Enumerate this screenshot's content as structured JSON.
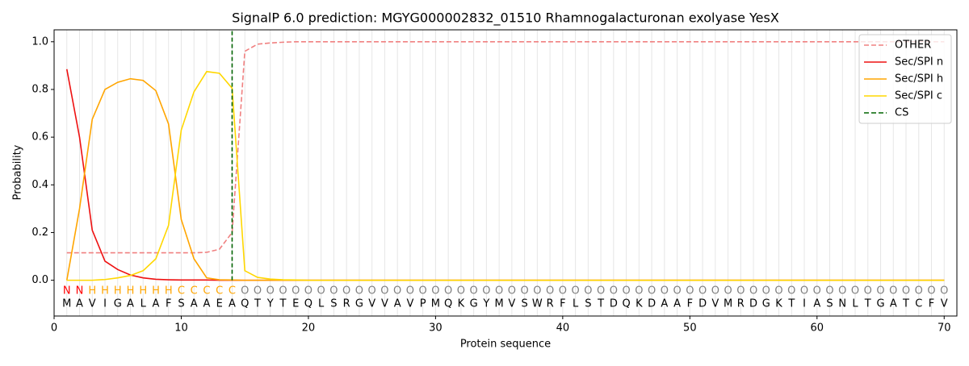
{
  "chart_data": {
    "type": "line",
    "title": "SignalP 6.0 prediction: MGYG000002832_01510 Rhamnogalacturonan exolyase YesX",
    "x_label": "Protein sequence",
    "y_label": "Probability",
    "x": [
      1,
      2,
      3,
      4,
      5,
      6,
      7,
      8,
      9,
      10,
      11,
      12,
      13,
      14,
      15,
      16,
      17,
      18,
      19,
      20,
      21,
      22,
      23,
      24,
      25,
      26,
      27,
      28,
      29,
      30,
      31,
      32,
      33,
      34,
      35,
      36,
      37,
      38,
      39,
      40,
      41,
      42,
      43,
      44,
      45,
      46,
      47,
      48,
      49,
      50,
      51,
      52,
      53,
      54,
      55,
      56,
      57,
      58,
      59,
      60,
      61,
      62,
      63,
      64,
      65,
      66,
      67,
      68,
      69,
      70
    ],
    "residues": [
      "M",
      "A",
      "V",
      "I",
      "G",
      "A",
      "L",
      "A",
      "F",
      "S",
      "A",
      "A",
      "E",
      "A",
      "Q",
      "T",
      "Y",
      "T",
      "E",
      "Q",
      "L",
      "S",
      "R",
      "G",
      "V",
      "V",
      "A",
      "V",
      "P",
      "M",
      "Q",
      "K",
      "G",
      "Y",
      "M",
      "V",
      "S",
      "W",
      "R",
      "F",
      "L",
      "S",
      "T",
      "D",
      "Q",
      "K",
      "D",
      "A",
      "A",
      "F",
      "D",
      "V",
      "M",
      "R",
      "D",
      "G",
      "K",
      "T",
      "I",
      "A",
      "S",
      "N",
      "L",
      "T",
      "G",
      "A",
      "T",
      "C",
      "F",
      "V"
    ],
    "states": [
      "N",
      "N",
      "H",
      "H",
      "H",
      "H",
      "H",
      "H",
      "H",
      "C",
      "C",
      "C",
      "C",
      "C",
      "O",
      "O",
      "O",
      "O",
      "O",
      "O",
      "O",
      "O",
      "O",
      "O",
      "O",
      "O",
      "O",
      "O",
      "O",
      "O",
      "O",
      "O",
      "O",
      "O",
      "O",
      "O",
      "O",
      "O",
      "O",
      "O",
      "O",
      "O",
      "O",
      "O",
      "O",
      "O",
      "O",
      "O",
      "O",
      "O",
      "O",
      "O",
      "O",
      "O",
      "O",
      "O",
      "O",
      "O",
      "O",
      "O",
      "O",
      "O",
      "O",
      "O",
      "O",
      "O",
      "O",
      "O",
      "O",
      "O"
    ],
    "state_colors": {
      "N": "#ff0000",
      "H": "#ffa500",
      "C": "#ffa500",
      "O": "#808080"
    },
    "series": [
      {
        "name": "OTHER",
        "color": "#f08080",
        "linestyle": "dashed",
        "values": [
          0.115,
          0.115,
          0.115,
          0.115,
          0.115,
          0.115,
          0.115,
          0.115,
          0.115,
          0.115,
          0.115,
          0.117,
          0.13,
          0.2,
          0.96,
          0.99,
          0.995,
          0.998,
          1,
          1,
          1,
          1,
          1,
          1,
          1,
          1,
          1,
          1,
          1,
          1,
          1,
          1,
          1,
          1,
          1,
          1,
          1,
          1,
          1,
          1,
          1,
          1,
          1,
          1,
          1,
          1,
          1,
          1,
          1,
          1,
          1,
          1,
          1,
          1,
          1,
          1,
          1,
          1,
          1,
          1,
          1,
          1,
          1,
          1,
          1,
          1,
          1,
          1,
          1,
          1
        ]
      },
      {
        "name": "Sec/SPI n",
        "color": "#ee1111",
        "linestyle": "solid",
        "values": [
          0.885,
          0.6,
          0.21,
          0.08,
          0.045,
          0.022,
          0.01,
          0.004,
          0.002,
          0.001,
          0.001,
          0.001,
          0,
          0,
          0,
          0,
          0,
          0,
          0,
          0,
          0,
          0,
          0,
          0,
          0,
          0,
          0,
          0,
          0,
          0,
          0,
          0,
          0,
          0,
          0,
          0,
          0,
          0,
          0,
          0,
          0,
          0,
          0,
          0,
          0,
          0,
          0,
          0,
          0,
          0,
          0,
          0,
          0,
          0,
          0,
          0,
          0,
          0,
          0,
          0,
          0,
          0,
          0,
          0,
          0,
          0,
          0,
          0,
          0,
          0
        ]
      },
      {
        "name": "Sec/SPI h",
        "color": "#ffa500",
        "linestyle": "solid",
        "values": [
          0,
          0.3,
          0.675,
          0.8,
          0.83,
          0.845,
          0.838,
          0.795,
          0.655,
          0.255,
          0.09,
          0.01,
          0.002,
          0.001,
          0,
          0,
          0,
          0,
          0,
          0,
          0,
          0,
          0,
          0,
          0,
          0,
          0,
          0,
          0,
          0,
          0,
          0,
          0,
          0,
          0,
          0,
          0,
          0,
          0,
          0,
          0,
          0,
          0,
          0,
          0,
          0,
          0,
          0,
          0,
          0,
          0,
          0,
          0,
          0,
          0,
          0,
          0,
          0,
          0,
          0,
          0,
          0,
          0,
          0,
          0,
          0,
          0,
          0,
          0,
          0
        ]
      },
      {
        "name": "Sec/SPI c",
        "color": "#ffd700",
        "linestyle": "solid",
        "values": [
          0,
          0,
          0,
          0.003,
          0.01,
          0.02,
          0.04,
          0.09,
          0.23,
          0.63,
          0.79,
          0.875,
          0.868,
          0.805,
          0.04,
          0.012,
          0.005,
          0.002,
          0.001,
          0,
          0,
          0,
          0,
          0,
          0,
          0,
          0,
          0,
          0,
          0,
          0,
          0,
          0,
          0,
          0,
          0,
          0,
          0,
          0,
          0,
          0,
          0,
          0,
          0,
          0,
          0,
          0,
          0,
          0,
          0,
          0,
          0,
          0,
          0,
          0,
          0,
          0,
          0,
          0,
          0,
          0,
          0,
          0,
          0,
          0,
          0,
          0,
          0,
          0,
          0
        ]
      }
    ],
    "cs": {
      "name": "CS",
      "x": 14,
      "color": "#006400"
    },
    "xlim": [
      0,
      71
    ],
    "ylim": [
      -0.15,
      1.05
    ],
    "xticks": [
      0,
      10,
      20,
      30,
      40,
      50,
      60,
      70
    ],
    "yticks": [
      {
        "value": 0,
        "label": "0.0"
      },
      {
        "value": 0.2,
        "label": "0.2"
      },
      {
        "value": 0.4,
        "label": "0.4"
      },
      {
        "value": 0.6,
        "label": "0.6"
      },
      {
        "value": 0.8,
        "label": "0.8"
      },
      {
        "value": 1,
        "label": "1.0"
      }
    ],
    "legend": "upper right"
  }
}
